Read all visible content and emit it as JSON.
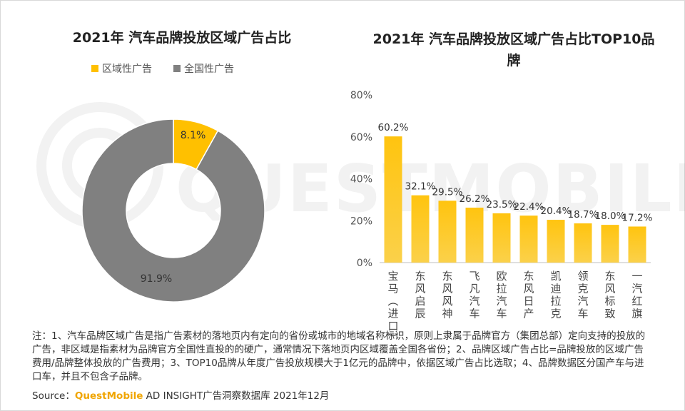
{
  "colors": {
    "regional": "#ffc000",
    "national": "#808080",
    "bar_top": "#ffc40f",
    "bar_bottom": "#fbd14a"
  },
  "left_title": "2021年 汽车品牌投放区域广告占比",
  "right_title_line1": "2021年 汽车品牌投放区域广告占比TOP10品",
  "right_title_line2": "牌",
  "note": "注：1、汽车品牌区域广告是指广告素材的落地页内有定向的省份或城市的地域名称标识，原则上隶属于品牌官方（集团总部）定向支持的投放的广告，非区域是指素材为品牌官方全国性直投的的硬广，通常情况下落地页内区域覆盖全国各省份；2、品牌区域广告占比=品牌投放的区域广告费用/品牌整体投放的广告费用；3、TOP10品牌从年度广告投放规模大于1亿元的品牌中，依据区域广告占比选取；4、品牌数据区分国产车与进口车，并且不包含子品牌。",
  "source_prefix": "Source：",
  "source_brand": "QuestMobile",
  "source_rest": " AD INSIGHT广告洞察数据库 2021年12月",
  "watermark_text": "QUESTMOBILE",
  "chart_data": [
    {
      "type": "pie",
      "title": "2021年 汽车品牌投放区域广告占比",
      "legend_position": "top",
      "labels": [
        "区域性广告",
        "全国性广告"
      ],
      "values": [
        8.1,
        91.9
      ],
      "value_labels": [
        "8.1%",
        "91.9%"
      ]
    },
    {
      "type": "bar",
      "title": "2021年 汽车品牌投放区域广告占比TOP10品牌",
      "categories": [
        "宝马(进口)",
        "东风启辰",
        "东风风神",
        "飞凡汽车",
        "欧拉汽车",
        "东风日产",
        "凯迪拉克",
        "领克汽车",
        "东风标致",
        "一汽红旗"
      ],
      "values": [
        60.2,
        32.1,
        29.5,
        26.2,
        23.5,
        22.4,
        20.4,
        18.7,
        18.0,
        17.2
      ],
      "value_labels": [
        "60.2%",
        "32.1%",
        "29.5%",
        "26.2%",
        "23.5%",
        "22.4%",
        "20.4%",
        "18.7%",
        "18.0%",
        "17.2%"
      ],
      "ylim": [
        0,
        80
      ],
      "yticks": [
        0,
        20,
        40,
        60,
        80
      ],
      "ytick_labels": [
        "0%",
        "20%",
        "40%",
        "60%",
        "80%"
      ],
      "grid": false
    }
  ]
}
